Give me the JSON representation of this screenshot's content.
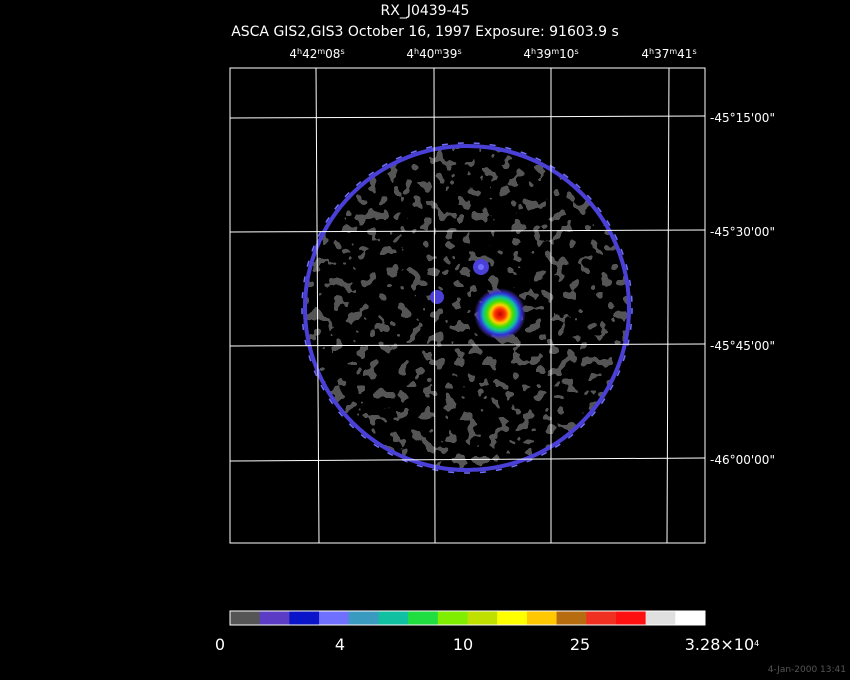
{
  "title": "RX_J0439-45",
  "subtitle": "ASCA GIS2,GIS3 October 16, 1997 Exposure: 91603.9 s",
  "ra_labels": [
    [
      "4",
      "h",
      "42",
      "m",
      "08",
      "s"
    ],
    [
      "4",
      "h",
      "40",
      "m",
      "39",
      "s"
    ],
    [
      "4",
      "h",
      "39",
      "m",
      "10",
      "s"
    ],
    [
      "4",
      "h",
      "37",
      "m",
      "41",
      "s"
    ]
  ],
  "dec_labels": [
    "-45°15'00\"",
    "-45°30'00\"",
    "-45°45'00\"",
    "-46°00'00\""
  ],
  "colorbar": {
    "colors": [
      "#555555",
      "#5b3cc4",
      "#0a14c8",
      "#7070ff",
      "#3a9ac0",
      "#10c0a0",
      "#20dd40",
      "#80ee00",
      "#c0e000",
      "#ffff00",
      "#ffc800",
      "#b86c10",
      "#f03020",
      "#ff1010",
      "#e0e0e0",
      "#ffffff"
    ],
    "labels": [
      [
        "0"
      ],
      [
        "4"
      ],
      [
        "10"
      ],
      [
        "25"
      ],
      [
        "3.28×10",
        "4"
      ]
    ]
  },
  "footer": "4-Jan-2000 13:41"
}
